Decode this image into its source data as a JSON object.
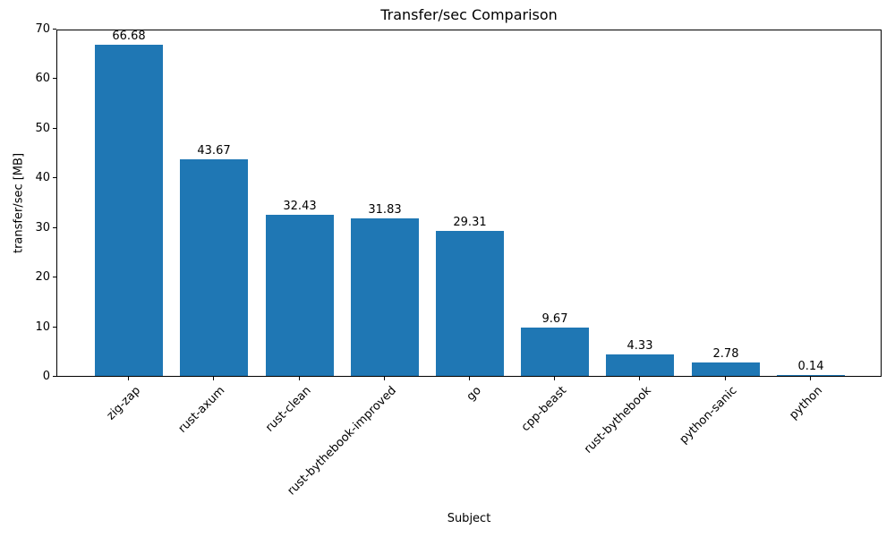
{
  "chart_data": {
    "type": "bar",
    "title": "Transfer/sec Comparison",
    "xlabel": "Subject",
    "ylabel": "transfer/sec [MB]",
    "categories": [
      "zig-zap",
      "rust-axum",
      "rust-clean",
      "rust-bythebook-improved",
      "go",
      "cpp-beast",
      "rust-bythebook",
      "python-sanic",
      "python"
    ],
    "values": [
      66.68,
      43.67,
      32.43,
      31.83,
      29.31,
      9.67,
      4.33,
      2.78,
      0.14
    ],
    "bar_labels": [
      "66.68",
      "43.67",
      "32.43",
      "31.83",
      "29.31",
      "9.67",
      "4.33",
      "2.78",
      "0.14"
    ],
    "ylim": [
      0,
      70
    ],
    "yticks": [
      0,
      10,
      20,
      30,
      40,
      50,
      60,
      70
    ],
    "xtick_rotation_deg": 45,
    "grid": false,
    "legend": "none",
    "bar_color": "#1f77b4",
    "text_color": "#000000",
    "background_color": "#ffffff"
  }
}
